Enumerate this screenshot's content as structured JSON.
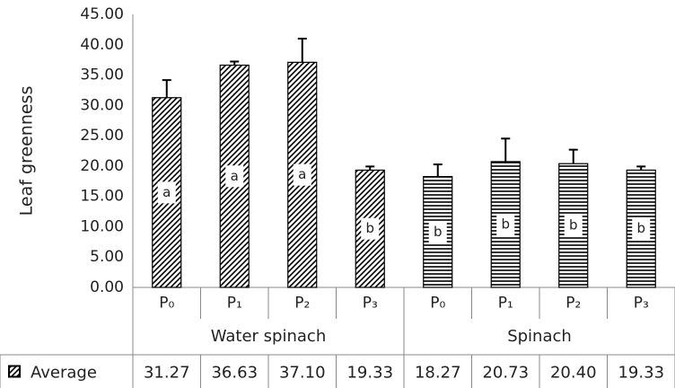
{
  "chart_data": {
    "type": "bar",
    "y_label": "Leaf greenness",
    "categories": [
      "P₀",
      "P₁",
      "P₂",
      "P₃",
      "P₀",
      "P₁",
      "P₂",
      "P₃"
    ],
    "groups": [
      {
        "label": "Water spinach",
        "count": 4,
        "pattern": "diagonal"
      },
      {
        "label": "Spinach",
        "count": 4,
        "pattern": "horizontal"
      }
    ],
    "series": [
      {
        "name": "Average",
        "color": "#000000",
        "values": [
          31.27,
          36.63,
          37.1,
          19.33,
          18.27,
          20.73,
          20.4,
          19.33
        ],
        "value_labels": [
          "31.27",
          "36.63",
          "37.10",
          "19.33",
          "18.27",
          "20.73",
          "20.40",
          "19.33"
        ],
        "errors": [
          2.9,
          0.6,
          3.9,
          0.6,
          2.0,
          3.8,
          2.3,
          0.6
        ],
        "letters": [
          "a",
          "a",
          "a",
          "b",
          "b",
          "b",
          "b",
          "b"
        ]
      }
    ],
    "ylim": [
      0,
      45
    ],
    "yticks": [
      {
        "value": 0,
        "label": "0.00"
      },
      {
        "value": 5,
        "label": "5.00"
      },
      {
        "value": 10,
        "label": "10.00"
      },
      {
        "value": 15,
        "label": "15.00"
      },
      {
        "value": 20,
        "label": "20.00"
      },
      {
        "value": 25,
        "label": "25.00"
      },
      {
        "value": 30,
        "label": "30.00"
      },
      {
        "value": 35,
        "label": "35.00"
      },
      {
        "value": 40,
        "label": "40.00"
      },
      {
        "value": 45,
        "label": "45.00"
      }
    ],
    "grid": false
  }
}
